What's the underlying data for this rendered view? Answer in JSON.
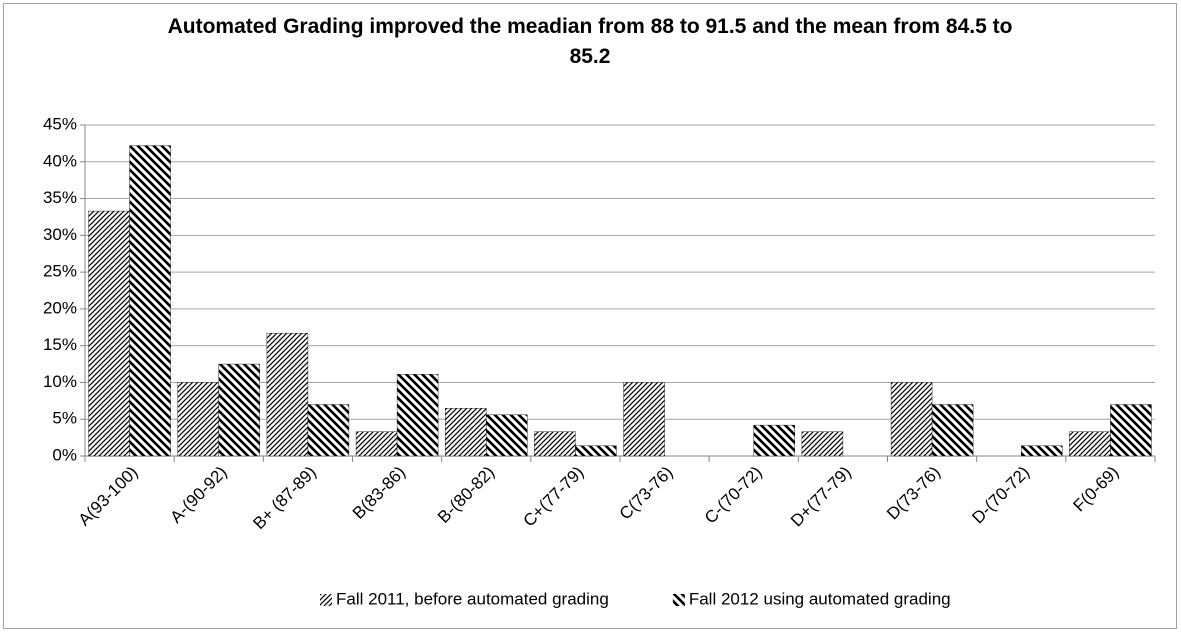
{
  "chart_data": {
    "type": "bar",
    "title": "Automated Grading improved the meadian from 88 to 91.5 and the mean from 84.5 to 85.2",
    "categories": [
      "A(93-100)",
      "A-(90-92)",
      "B+ (87-89)",
      "B(83-86)",
      "B-(80-82)",
      "C+(77-79)",
      "C(73-76)",
      "C-(70-72)",
      "D+(77-79)",
      "D(73-76)",
      "D-(70-72)",
      "F(0-69)"
    ],
    "series": [
      {
        "name": "Fall 2011, before automated grading",
        "color": "#000000",
        "values": [
          33.3,
          10,
          16.7,
          3.3,
          6.5,
          3.3,
          10,
          0,
          3.3,
          10,
          0,
          3.3
        ]
      },
      {
        "name": "Fall 2012 using automated grading",
        "color": "#000000",
        "values": [
          42.2,
          12.5,
          7,
          11.1,
          5.6,
          1.4,
          0,
          4.2,
          0,
          7,
          1.4,
          7
        ]
      }
    ],
    "ylim": [
      0,
      45
    ],
    "yticks": [
      {
        "value": 0,
        "label": "0%"
      },
      {
        "value": 5,
        "label": "5%"
      },
      {
        "value": 10,
        "label": "10%"
      },
      {
        "value": 15,
        "label": "15%"
      },
      {
        "value": 20,
        "label": "20%"
      },
      {
        "value": 25,
        "label": "25%"
      },
      {
        "value": 30,
        "label": "30%"
      },
      {
        "value": 35,
        "label": "35%"
      },
      {
        "value": 40,
        "label": "40%"
      },
      {
        "value": 45,
        "label": "45%"
      }
    ],
    "grid": true,
    "legend": "bottom"
  }
}
